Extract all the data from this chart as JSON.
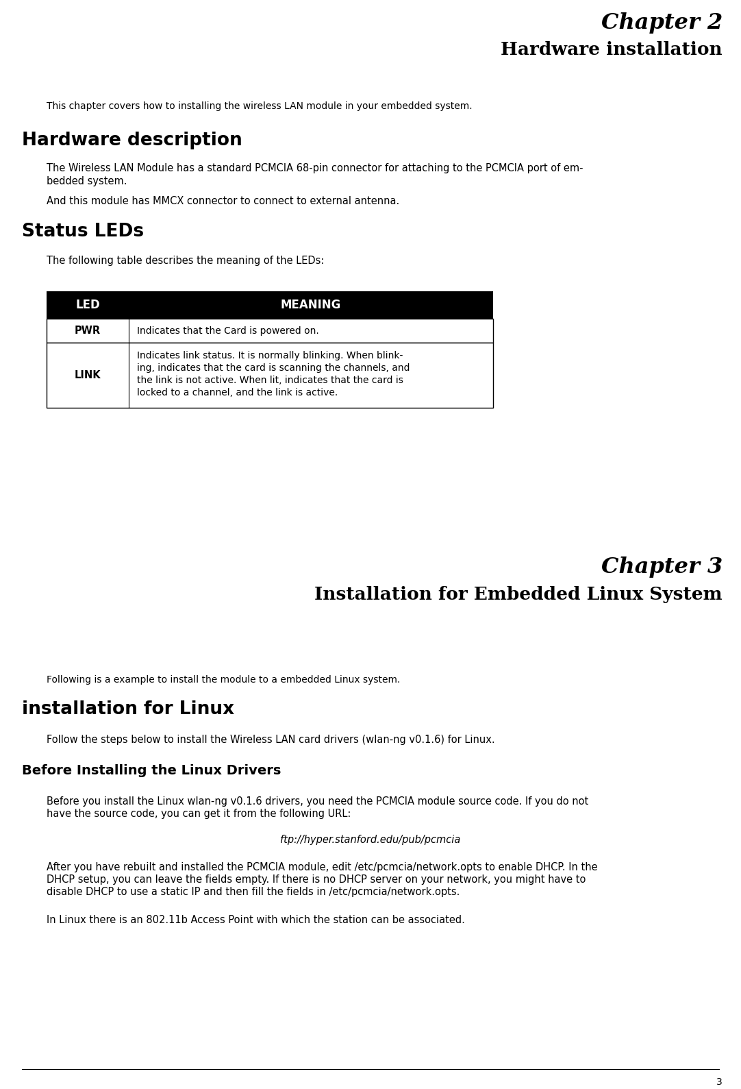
{
  "bg_color": "#ffffff",
  "chapter2_title": "Chapter 2",
  "chapter2_subtitle": "Hardware installation",
  "intro_text": "This chapter covers how to installing the wireless LAN module in your embedded system.",
  "section1_title": "Hardware description",
  "section1_para1a": "The Wireless LAN Module has a standard PCMCIA 68-pin connector for attaching to the PCMCIA port of em-",
  "section1_para1b": "bedded system.",
  "section1_para2": "And this module has MMCX connector to connect to external antenna.",
  "section2_title": "Status LEDs",
  "section2_intro": "The following table describes the meaning of the LEDs:",
  "table_header_led": "LED",
  "table_header_meaning": "MEANING",
  "table_row1_led": "PWR",
  "table_row1_meaning": "Indicates that the Card is powered on.",
  "table_row2_led": "LINK",
  "table_row2_meaning_l1": "Indicates link status. It is normally blinking. When blink-",
  "table_row2_meaning_l2": "ing, indicates that the card is scanning the channels, and",
  "table_row2_meaning_l3": "the link is not active. When lit, indicates that the card is",
  "table_row2_meaning_l4": "locked to a channel, and the link is active.",
  "chapter3_title": "Chapter 3",
  "chapter3_subtitle": "Installation for Embedded Linux System",
  "ch3_intro": "Following is a example to install the module to a embedded Linux system.",
  "section3_title": "installation for Linux",
  "section3_intro": "Follow the steps below to install the Wireless LAN card drivers (wlan-ng v0.1.6) for Linux.",
  "section4_title": "Before Installing the Linux Drivers",
  "section4_para1a": "Before you install the Linux wlan-ng v0.1.6 drivers, you need the PCMCIA module source code. If you do not",
  "section4_para1b": "have the source code, you can get it from the following URL:",
  "section4_url": "ftp://hyper.stanford.edu/pub/pcmcia",
  "section4_para2a": "After you have rebuilt and installed the PCMCIA module, edit /etc/pcmcia/network.opts to enable DHCP. In the",
  "section4_para2b": "DHCP setup, you can leave the fields empty. If there is no DHCP server on your network, you might have to",
  "section4_para2c": "disable DHCP to use a static IP and then fill the fields in /etc/pcmcia/network.opts.",
  "section4_para3": "In Linux there is an 802.11b Access Point with which the station can be associated.",
  "page_number": "3",
  "table_header_bg": "#000000",
  "table_header_fg": "#ffffff",
  "table_border_color": "#000000"
}
